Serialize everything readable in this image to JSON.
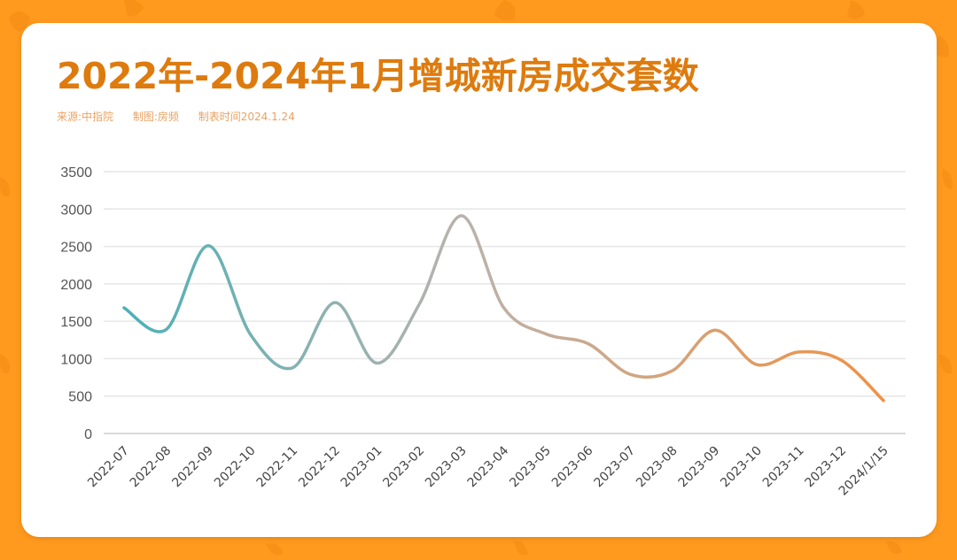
{
  "header": {
    "title": "2022年-2024年1月增城新房成交套数",
    "source": "来源:中指院",
    "made_by": "制图:房频",
    "made_time": "制表时间2024.1.24"
  },
  "colors": {
    "background": "#FF9A1E",
    "title": "#DE7B0E",
    "subtitle": "#E9A262",
    "line_start": "#4DB0B6",
    "line_mid": "#BAB3AC",
    "line_end": "#F29042",
    "grid": "#E6E6E6"
  },
  "chart_data": {
    "type": "line",
    "title": "2022年-2024年1月增城新房成交套数",
    "xlabel": "",
    "ylabel": "",
    "ylim": [
      0,
      3500
    ],
    "yticks": [
      0,
      500,
      1000,
      1500,
      2000,
      2500,
      3000,
      3500
    ],
    "grid": true,
    "legend": null,
    "smooth": true,
    "categories": [
      "2022-07",
      "2022-08",
      "2022-09",
      "2022-10",
      "2022-11",
      "2022-12",
      "2023-01",
      "2023-02",
      "2023-03",
      "2023-04",
      "2023-05",
      "2023-06",
      "2023-07",
      "2023-08",
      "2023-09",
      "2023-10",
      "2023-11",
      "2023-12",
      "2024/1/15"
    ],
    "series": [
      {
        "name": "新房成交套数",
        "values": [
          1680,
          1390,
          2510,
          1320,
          880,
          1750,
          940,
          1730,
          2910,
          1680,
          1330,
          1200,
          790,
          840,
          1380,
          920,
          1090,
          980,
          440
        ]
      }
    ],
    "annotations": [
      "来源:中指院",
      "制图:房频",
      "制表时间2024.1.24"
    ]
  }
}
